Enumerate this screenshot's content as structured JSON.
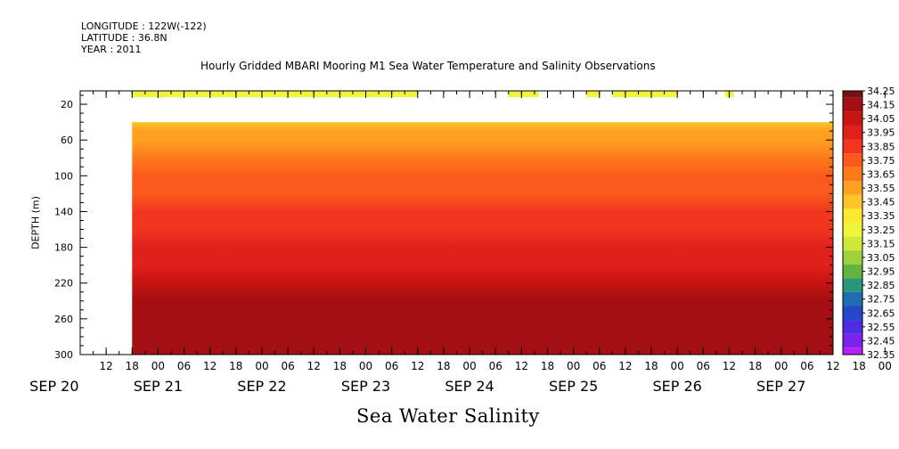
{
  "header": {
    "longitude": "LONGITUDE : 122W(-122)",
    "latitude": "LATITUDE : 36.8N",
    "year": "YEAR : 2011"
  },
  "chart_data": {
    "type": "heatmap",
    "title": "Hourly Gridded MBARI Mooring M1 Sea Water Temperature and Salinity Observations",
    "xlabel": "Sea Water Salinity",
    "ylabel": "DEPTH (m)",
    "x_hour_ticks": [
      "12",
      "18",
      "00",
      "06",
      "12",
      "18",
      "00",
      "06",
      "12",
      "18",
      "00",
      "06",
      "12",
      "18",
      "00",
      "06",
      "12",
      "18",
      "00",
      "06",
      "12",
      "18",
      "00",
      "06",
      "12",
      "18",
      "00",
      "06",
      "12",
      "18",
      "00"
    ],
    "x_date_labels": [
      "SEP 20",
      "SEP 21",
      "SEP 22",
      "SEP 23",
      "SEP 24",
      "SEP 25",
      "SEP 26",
      "SEP 27"
    ],
    "y_ticks": [
      20,
      60,
      100,
      140,
      180,
      220,
      260,
      300
    ],
    "ylim": [
      300,
      5
    ],
    "y_reversed": true,
    "colorbar_ticks": [
      "34.25",
      "34.15",
      "34.05",
      "33.95",
      "33.85",
      "33.75",
      "33.65",
      "33.55",
      "33.45",
      "33.35",
      "33.25",
      "33.15",
      "33.05",
      "32.95",
      "32.85",
      "32.75",
      "32.65",
      "32.55",
      "32.45",
      "32.35"
    ],
    "colorbar_colors": [
      "#7a0f12",
      "#a30f12",
      "#c71414",
      "#e0201b",
      "#f0361e",
      "#fb5a1c",
      "#fd7a1a",
      "#fea022",
      "#fec52a",
      "#fde832",
      "#f1f53a",
      "#cfe83a",
      "#9ed23a",
      "#62b43e",
      "#29967a",
      "#1e6eb0",
      "#2846c8",
      "#4a2ee0",
      "#7a22ee",
      "#b81ef8"
    ],
    "surface_band": {
      "depth_range": [
        5,
        12
      ],
      "segments": [
        {
          "start": "SEP 20 18",
          "end": "SEP 23 12",
          "salinity": 33.2
        },
        {
          "start": "SEP 24 09",
          "end": "SEP 24 16",
          "salinity": 33.2
        },
        {
          "start": "SEP 25 03",
          "end": "SEP 25 06",
          "salinity": 33.2
        },
        {
          "start": "SEP 25 09",
          "end": "SEP 26 00",
          "salinity": 33.2
        },
        {
          "start": "SEP 26 11",
          "end": "SEP 26 13",
          "salinity": 33.2
        }
      ]
    },
    "profile": {
      "depths": [
        40,
        50,
        60,
        80,
        100,
        120,
        140,
        160,
        180,
        200,
        220,
        240,
        260,
        280,
        300
      ],
      "salinity": [
        33.45,
        33.5,
        33.55,
        33.62,
        33.7,
        33.78,
        33.84,
        33.9,
        33.94,
        33.99,
        34.05,
        34.12,
        34.18,
        34.18,
        34.15
      ],
      "start": "SEP 20 18"
    }
  }
}
